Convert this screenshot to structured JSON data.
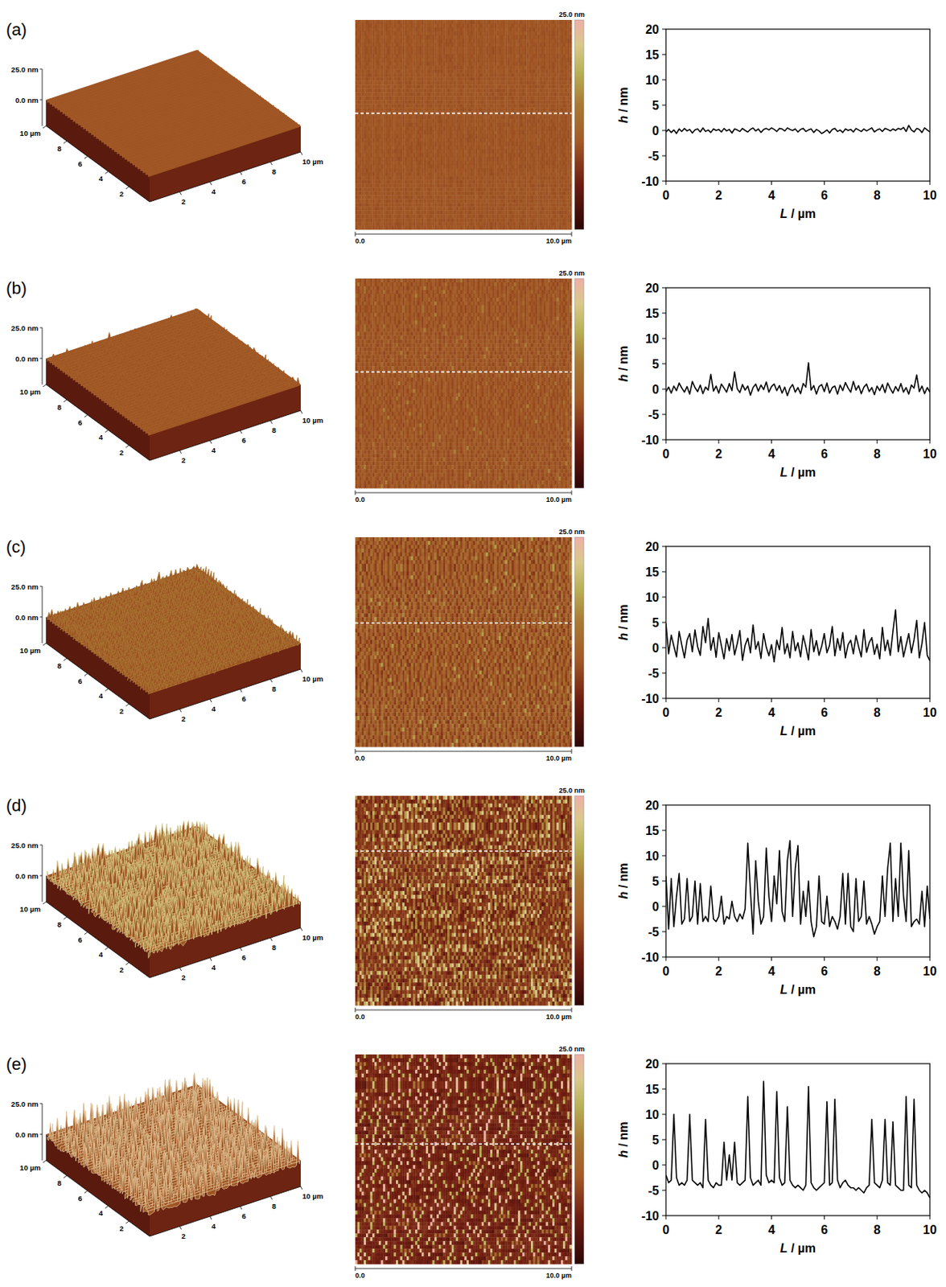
{
  "panel_labels": [
    "(a)",
    "(b)",
    "(c)",
    "(d)",
    "(e)"
  ],
  "surface_axes": {
    "zticks": [
      {
        "value": 0,
        "label": "0.0 nm"
      },
      {
        "value": 25,
        "label": "25.0 nm"
      }
    ],
    "xticks": [
      2,
      4,
      6,
      8,
      {
        "value": 10,
        "label": "10 µm"
      }
    ],
    "depth_ticks": [
      2,
      4,
      6,
      8,
      {
        "value": 10,
        "label": "10 µm"
      }
    ],
    "xlim": [
      0,
      10
    ],
    "depth_lim": [
      0,
      10
    ]
  },
  "height_map": {
    "colorbar": {
      "range": [
        -10,
        15
      ],
      "label": "25.0 nm"
    },
    "scale_labels": [
      "0.0",
      "10.0 µm"
    ]
  },
  "chart_data": [
    {
      "type": "line",
      "x_label": "L / µm",
      "y_label": "h / nm",
      "xlim": [
        0,
        10
      ],
      "ylim": [
        -10,
        20
      ],
      "xticks": [
        0,
        2,
        4,
        6,
        8,
        10
      ],
      "yticks": [
        -10,
        -5,
        0,
        5,
        10,
        15,
        20
      ],
      "color": "#000000",
      "x": [
        0,
        0.1,
        0.2,
        0.3,
        0.4,
        0.5,
        0.6,
        0.7,
        0.8,
        0.9,
        1,
        1.1,
        1.2,
        1.3,
        1.4,
        1.5,
        1.6,
        1.7,
        1.8,
        1.9,
        2,
        2.1,
        2.2,
        2.3,
        2.4,
        2.5,
        2.6,
        2.7,
        2.8,
        2.9,
        3,
        3.1,
        3.2,
        3.3,
        3.4,
        3.5,
        3.6,
        3.7,
        3.8,
        3.9,
        4,
        4.1,
        4.2,
        4.3,
        4.4,
        4.5,
        4.6,
        4.7,
        4.8,
        4.9,
        5,
        5.1,
        5.2,
        5.3,
        5.4,
        5.5,
        5.6,
        5.7,
        5.8,
        5.9,
        6,
        6.1,
        6.2,
        6.3,
        6.4,
        6.5,
        6.6,
        6.7,
        6.8,
        6.9,
        7,
        7.1,
        7.2,
        7.3,
        7.4,
        7.5,
        7.6,
        7.7,
        7.8,
        7.9,
        8,
        8.1,
        8.2,
        8.3,
        8.4,
        8.5,
        8.6,
        8.7,
        8.8,
        8.9,
        9,
        9.1,
        9.2,
        9.3,
        9.4,
        9.5,
        9.6,
        9.7,
        9.8,
        9.9,
        10
      ],
      "values": [
        -0.3,
        0.2,
        -0.4,
        0.1,
        -0.6,
        0.3,
        -0.2,
        0.4,
        -0.1,
        0.2,
        -0.5,
        0.1,
        0.3,
        -0.3,
        0.5,
        -0.2,
        0.1,
        -0.4,
        0.3,
        0.0,
        0.2,
        -0.3,
        0.4,
        -0.1,
        0.2,
        -0.5,
        0.3,
        0.1,
        -0.2,
        0.4,
        0.0,
        -0.3,
        0.2,
        0.5,
        -0.1,
        0.3,
        -0.4,
        0.2,
        0.4,
        0.1,
        0.5,
        0.2,
        -0.2,
        0.4,
        0.3,
        -0.1,
        0.5,
        0.2,
        0.0,
        0.3,
        -0.3,
        0.2,
        0.4,
        -0.2,
        0.1,
        0.3,
        -0.4,
        0.2,
        -0.1,
        -0.6,
        -0.3,
        0.1,
        -0.5,
        0.2,
        0.4,
        -0.2,
        0.1,
        -0.4,
        0.3,
        0.0,
        0.2,
        -0.3,
        0.4,
        0.1,
        -0.2,
        0.3,
        -0.1,
        0.2,
        0.5,
        -0.3,
        0.1,
        0.3,
        -0.2,
        0.4,
        0.2,
        -0.1,
        0.3,
        0.0,
        0.4,
        0.2,
        0.6,
        -0.2,
        1.0,
        0.1,
        -0.3,
        0.4,
        0.2,
        -0.4,
        0.5,
        0.1,
        -0.3
      ]
    },
    {
      "type": "line",
      "x_label": "L / µm",
      "y_label": "h / nm",
      "xlim": [
        0,
        10
      ],
      "ylim": [
        -10,
        20
      ],
      "xticks": [
        0,
        2,
        4,
        6,
        8,
        10
      ],
      "yticks": [
        -10,
        -5,
        0,
        5,
        10,
        15,
        20
      ],
      "color": "#000000",
      "x": [
        0,
        0.1,
        0.2,
        0.3,
        0.4,
        0.5,
        0.6,
        0.7,
        0.8,
        0.9,
        1,
        1.1,
        1.2,
        1.3,
        1.4,
        1.5,
        1.6,
        1.7,
        1.8,
        1.9,
        2,
        2.1,
        2.2,
        2.3,
        2.4,
        2.5,
        2.6,
        2.7,
        2.8,
        2.9,
        3,
        3.1,
        3.2,
        3.3,
        3.4,
        3.5,
        3.6,
        3.7,
        3.8,
        3.9,
        4,
        4.1,
        4.2,
        4.3,
        4.4,
        4.5,
        4.6,
        4.7,
        4.8,
        4.9,
        5,
        5.1,
        5.2,
        5.3,
        5.4,
        5.5,
        5.6,
        5.7,
        5.8,
        5.9,
        6,
        6.1,
        6.2,
        6.3,
        6.4,
        6.5,
        6.6,
        6.7,
        6.8,
        6.9,
        7,
        7.1,
        7.2,
        7.3,
        7.4,
        7.5,
        7.6,
        7.7,
        7.8,
        7.9,
        8,
        8.1,
        8.2,
        8.3,
        8.4,
        8.5,
        8.6,
        8.7,
        8.8,
        8.9,
        9,
        9.1,
        9.2,
        9.3,
        9.4,
        9.5,
        9.6,
        9.7,
        9.8,
        9.9,
        10
      ],
      "values": [
        -0.5,
        0.4,
        -0.8,
        0.6,
        -0.3,
        1.2,
        0.2,
        -0.6,
        0.5,
        -1.0,
        1.5,
        0.3,
        -0.5,
        0.8,
        -0.9,
        0.4,
        -0.2,
        2.9,
        -0.4,
        0.6,
        -0.8,
        1.0,
        0.2,
        -0.6,
        1.1,
        -0.3,
        3.4,
        0.1,
        -0.7,
        0.9,
        -0.2,
        0.6,
        -1.2,
        0.3,
        1.0,
        -0.4,
        0.8,
        -0.1,
        1.4,
        -0.6,
        0.5,
        1.0,
        -0.3,
        0.7,
        -0.8,
        0.4,
        -1.3,
        0.2,
        0.9,
        -0.6,
        0.3,
        -0.9,
        1.1,
        0.4,
        5.2,
        -0.2,
        0.7,
        -1.0,
        0.5,
        0.9,
        -0.5,
        1.2,
        -0.8,
        0.3,
        0.6,
        -1.0,
        0.8,
        -0.3,
        1.3,
        0.2,
        -0.6,
        1.5,
        -0.2,
        0.7,
        -0.9,
        0.4,
        1.0,
        -0.5,
        0.3,
        -1.1,
        0.6,
        -0.3,
        0.9,
        -0.7,
        1.2,
        0.1,
        -0.8,
        0.5,
        -0.4,
        1.1,
        -0.6,
        0.3,
        -1.0,
        0.8,
        0.2,
        2.8,
        -0.5,
        0.6,
        -0.9,
        0.3,
        -0.6
      ]
    },
    {
      "type": "line",
      "x_label": "L / µm",
      "y_label": "h / nm",
      "xlim": [
        0,
        10
      ],
      "ylim": [
        -10,
        20
      ],
      "xticks": [
        0,
        2,
        4,
        6,
        8,
        10
      ],
      "yticks": [
        -10,
        -5,
        0,
        5,
        10,
        15,
        20
      ],
      "color": "#000000",
      "x": [
        0,
        0.1,
        0.2,
        0.3,
        0.4,
        0.5,
        0.6,
        0.7,
        0.8,
        0.9,
        1,
        1.1,
        1.2,
        1.3,
        1.4,
        1.5,
        1.6,
        1.7,
        1.8,
        1.9,
        2,
        2.1,
        2.2,
        2.3,
        2.4,
        2.5,
        2.6,
        2.7,
        2.8,
        2.9,
        3,
        3.1,
        3.2,
        3.3,
        3.4,
        3.5,
        3.6,
        3.7,
        3.8,
        3.9,
        4,
        4.1,
        4.2,
        4.3,
        4.4,
        4.5,
        4.6,
        4.7,
        4.8,
        4.9,
        5,
        5.1,
        5.2,
        5.3,
        5.4,
        5.5,
        5.6,
        5.7,
        5.8,
        5.9,
        6,
        6.1,
        6.2,
        6.3,
        6.4,
        6.5,
        6.6,
        6.7,
        6.8,
        6.9,
        7,
        7.1,
        7.2,
        7.3,
        7.4,
        7.5,
        7.6,
        7.7,
        7.8,
        7.9,
        8,
        8.1,
        8.2,
        8.3,
        8.4,
        8.5,
        8.6,
        8.7,
        8.8,
        8.9,
        9,
        9.1,
        9.2,
        9.3,
        9.4,
        9.5,
        9.6,
        9.7,
        9.8,
        9.9,
        10
      ],
      "values": [
        4.8,
        -1.2,
        2.5,
        0.3,
        -1.8,
        3.2,
        0.5,
        -2.0,
        1.5,
        2.8,
        -0.8,
        3.5,
        0.2,
        -1.5,
        4.2,
        1.0,
        5.8,
        -0.5,
        2.0,
        -1.9,
        3.0,
        0.4,
        -2.2,
        1.8,
        -0.6,
        2.6,
        -1.4,
        0.8,
        3.4,
        -2.5,
        0.5,
        1.9,
        -1.0,
        4.5,
        -0.3,
        1.2,
        -2.1,
        2.8,
        0.1,
        -1.6,
        0.6,
        -2.8,
        1.5,
        -0.4,
        4.0,
        -1.2,
        0.8,
        -2.0,
        3.2,
        -0.6,
        1.0,
        -1.8,
        2.4,
        0.2,
        -2.4,
        3.6,
        -0.8,
        1.4,
        -1.5,
        0.3,
        2.8,
        -1.0,
        0.5,
        4.2,
        -1.6,
        1.8,
        -0.5,
        3.0,
        -2.0,
        0.6,
        1.5,
        -1.2,
        2.4,
        0.2,
        -1.8,
        3.6,
        -0.9,
        1.0,
        2.0,
        -1.3,
        0.7,
        -2.2,
        4.0,
        -0.6,
        1.5,
        -1.5,
        3.2,
        7.5,
        -0.8,
        2.2,
        -1.8,
        0.5,
        2.8,
        -1.0,
        1.6,
        5.4,
        -2.0,
        0.8,
        5.0,
        -1.5,
        -2.6
      ]
    },
    {
      "type": "line",
      "x_label": "L / µm",
      "y_label": "h / nm",
      "xlim": [
        0,
        10
      ],
      "ylim": [
        -10,
        20
      ],
      "xticks": [
        0,
        2,
        4,
        6,
        8,
        10
      ],
      "yticks": [
        -10,
        -5,
        0,
        5,
        10,
        15,
        20
      ],
      "color": "#000000",
      "x": [
        0,
        0.1,
        0.2,
        0.3,
        0.4,
        0.5,
        0.6,
        0.7,
        0.8,
        0.9,
        1,
        1.1,
        1.2,
        1.3,
        1.4,
        1.5,
        1.6,
        1.7,
        1.8,
        1.9,
        2,
        2.1,
        2.2,
        2.3,
        2.4,
        2.5,
        2.6,
        2.7,
        2.8,
        2.9,
        3,
        3.1,
        3.2,
        3.3,
        3.4,
        3.5,
        3.6,
        3.7,
        3.8,
        3.9,
        4,
        4.1,
        4.2,
        4.3,
        4.4,
        4.5,
        4.6,
        4.7,
        4.8,
        4.9,
        5,
        5.1,
        5.2,
        5.3,
        5.4,
        5.5,
        5.6,
        5.7,
        5.8,
        5.9,
        6,
        6.1,
        6.2,
        6.3,
        6.4,
        6.5,
        6.6,
        6.7,
        6.8,
        6.9,
        7,
        7.1,
        7.2,
        7.3,
        7.4,
        7.5,
        7.6,
        7.7,
        7.8,
        7.9,
        8,
        8.1,
        8.2,
        8.3,
        8.4,
        8.5,
        8.6,
        8.7,
        8.8,
        8.9,
        9,
        9.1,
        9.2,
        9.3,
        9.4,
        9.5,
        9.6,
        9.7,
        9.8,
        9.9,
        10
      ],
      "values": [
        6.0,
        -4.5,
        5.5,
        -4.0,
        2.0,
        6.5,
        -3.5,
        -2.5,
        5.5,
        -3.0,
        -2.0,
        5.0,
        -3.5,
        4.5,
        -3.0,
        -2.0,
        -3.0,
        4.0,
        -2.5,
        -3.0,
        -2.0,
        2.0,
        -3.5,
        -2.0,
        -2.5,
        1.0,
        -2.0,
        -3.0,
        -1.5,
        -2.5,
        -0.5,
        12.5,
        3.0,
        -5.5,
        9.0,
        1.0,
        -3.5,
        -2.0,
        11.5,
        2.0,
        -3.0,
        6.0,
        0.5,
        11.0,
        -1.0,
        -3.0,
        9.0,
        13.0,
        -2.0,
        7.5,
        12.0,
        -3.5,
        3.0,
        -2.0,
        5.0,
        -3.0,
        -6.0,
        -4.0,
        6.0,
        -3.0,
        -3.5,
        2.0,
        -4.0,
        -2.0,
        -3.0,
        -4.5,
        -2.0,
        6.5,
        -3.5,
        6.5,
        -4.0,
        -5.0,
        5.5,
        -3.0,
        -2.0,
        5.0,
        -3.5,
        -2.0,
        -3.5,
        -5.5,
        -4.0,
        -3.0,
        6.0,
        -2.0,
        7.5,
        12.5,
        -3.0,
        5.5,
        -2.0,
        12.5,
        2.0,
        -3.0,
        11.0,
        -4.0,
        -3.0,
        -2.5,
        -3.5,
        3.0,
        -4.0,
        4.0,
        -2.5
      ]
    },
    {
      "type": "line",
      "x_label": "L / µm",
      "y_label": "h / nm",
      "xlim": [
        0,
        10
      ],
      "ylim": [
        -10,
        20
      ],
      "xticks": [
        0,
        2,
        4,
        6,
        8,
        10
      ],
      "yticks": [
        -10,
        -5,
        0,
        5,
        10,
        15,
        20
      ],
      "color": "#000000",
      "x": [
        0,
        0.1,
        0.2,
        0.3,
        0.4,
        0.5,
        0.6,
        0.7,
        0.8,
        0.9,
        1,
        1.1,
        1.2,
        1.3,
        1.4,
        1.5,
        1.6,
        1.7,
        1.8,
        1.9,
        2,
        2.1,
        2.2,
        2.3,
        2.4,
        2.5,
        2.6,
        2.7,
        2.8,
        2.9,
        3,
        3.1,
        3.2,
        3.3,
        3.4,
        3.5,
        3.6,
        3.7,
        3.8,
        3.9,
        4,
        4.1,
        4.2,
        4.3,
        4.4,
        4.5,
        4.6,
        4.7,
        4.8,
        4.9,
        5,
        5.1,
        5.2,
        5.3,
        5.4,
        5.5,
        5.6,
        5.7,
        5.8,
        5.9,
        6,
        6.1,
        6.2,
        6.3,
        6.4,
        6.5,
        6.6,
        6.7,
        6.8,
        6.9,
        7,
        7.1,
        7.2,
        7.3,
        7.4,
        7.5,
        7.6,
        7.7,
        7.8,
        7.9,
        8,
        8.1,
        8.2,
        8.3,
        8.4,
        8.5,
        8.6,
        8.7,
        8.8,
        8.9,
        9,
        9.1,
        9.2,
        9.3,
        9.4,
        9.5,
        9.6,
        9.7,
        9.8,
        9.9,
        10
      ],
      "values": [
        -2.0,
        -3.5,
        -3.0,
        10.0,
        -2.5,
        -4.0,
        -3.5,
        -4.0,
        -3.0,
        10.0,
        -3.0,
        -3.5,
        -4.0,
        -3.5,
        -4.5,
        9.0,
        -3.0,
        -4.0,
        -4.5,
        -3.5,
        -4.0,
        -4.0,
        4.5,
        -3.0,
        2.0,
        -3.0,
        4.5,
        -3.5,
        -4.0,
        -3.5,
        -3.0,
        13.5,
        -2.5,
        -4.0,
        -3.5,
        -3.0,
        -4.0,
        16.5,
        -2.0,
        -3.5,
        -3.0,
        -3.5,
        14.5,
        -2.5,
        -4.0,
        -3.5,
        11.5,
        -3.0,
        -4.0,
        -4.5,
        -4.0,
        -4.5,
        -5.0,
        -4.0,
        15.5,
        -3.5,
        -4.5,
        -5.0,
        -4.5,
        -4.0,
        -3.5,
        12.5,
        -4.0,
        -3.5,
        13.0,
        -3.0,
        -4.5,
        -3.5,
        -3.0,
        -4.0,
        -4.5,
        -4.5,
        -5.0,
        -4.5,
        -5.0,
        -5.5,
        -4.5,
        -4.0,
        9.0,
        -3.5,
        -4.0,
        -4.5,
        -3.0,
        9.0,
        -3.5,
        -4.0,
        8.5,
        -4.0,
        -4.5,
        -5.0,
        -5.0,
        13.5,
        -4.0,
        -4.5,
        13.0,
        -4.0,
        -5.0,
        -5.5,
        -5.0,
        -5.5,
        -6.5
      ]
    }
  ]
}
